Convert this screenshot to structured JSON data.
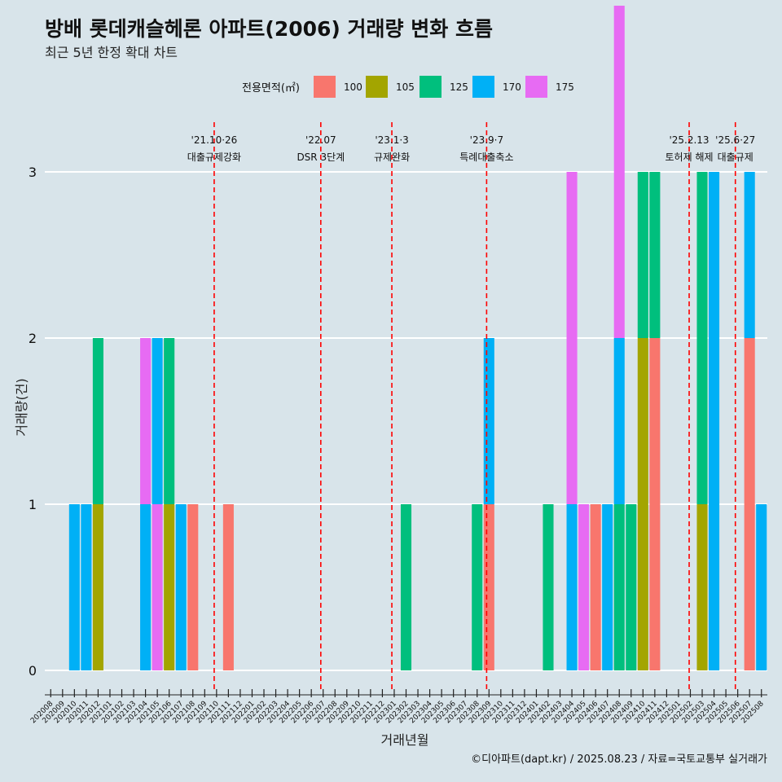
{
  "chart_data": {
    "type": "bar",
    "title": "방배 롯데캐슬헤론 아파트(2006) 거래량 변화 흐름",
    "subtitle": "최근 5년 한정 확대 차트",
    "xlabel": "거래년월",
    "ylabel": "거래량(건)",
    "caption": "©디아파트(dapt.kr) / 2025.08.23 / 자료=국토교통부 실거래가",
    "legend": {
      "title": "전용면적(㎡)",
      "placement": "top",
      "entries": [
        {
          "name": "100",
          "color": "#F8766D"
        },
        {
          "name": "105",
          "color": "#A3A500"
        },
        {
          "name": "125",
          "color": "#00BF7D"
        },
        {
          "name": "170",
          "color": "#00B0F6"
        },
        {
          "name": "175",
          "color": "#E76BF3"
        }
      ]
    },
    "ylim": [
      0,
      3
    ],
    "yticks": [
      0,
      1,
      2,
      3
    ],
    "grid": true,
    "categories": [
      "202008",
      "202009",
      "202010",
      "202011",
      "202012",
      "202101",
      "202102",
      "202103",
      "202104",
      "202105",
      "202106",
      "202107",
      "202108",
      "202109",
      "202110",
      "202111",
      "202112",
      "202201",
      "202202",
      "202203",
      "202204",
      "202205",
      "202206",
      "202207",
      "202208",
      "202209",
      "202210",
      "202211",
      "202212",
      "202301",
      "202302",
      "202303",
      "202304",
      "202305",
      "202306",
      "202307",
      "202308",
      "202309",
      "202310",
      "202311",
      "202312",
      "202401",
      "202402",
      "202403",
      "202404",
      "202405",
      "202406",
      "202407",
      "202408",
      "202409",
      "202410",
      "202411",
      "202412",
      "202501",
      "202502",
      "202503",
      "202504",
      "202505",
      "202506",
      "202507",
      "202508"
    ],
    "bars": [
      {
        "month": "202010",
        "groups": [
          {
            "size": "170",
            "count": 1
          }
        ]
      },
      {
        "month": "202011",
        "groups": [
          {
            "size": "170",
            "count": 1
          }
        ]
      },
      {
        "month": "202012",
        "groups": [
          {
            "size": "105",
            "count": 1
          },
          {
            "size": "125",
            "count": 1
          }
        ]
      },
      {
        "month": "202104",
        "groups": [
          {
            "size": "170",
            "count": 1
          },
          {
            "size": "175",
            "count": 1
          }
        ]
      },
      {
        "month": "202105",
        "groups": [
          {
            "size": "175",
            "count": 1
          },
          {
            "size": "170",
            "count": 1
          }
        ]
      },
      {
        "month": "202106",
        "groups": [
          {
            "size": "105",
            "count": 1
          },
          {
            "size": "125",
            "count": 1
          }
        ]
      },
      {
        "month": "202107",
        "groups": [
          {
            "size": "170",
            "count": 1
          }
        ]
      },
      {
        "month": "202108",
        "groups": [
          {
            "size": "100",
            "count": 1
          }
        ]
      },
      {
        "month": "202111",
        "groups": [
          {
            "size": "100",
            "count": 1
          }
        ]
      },
      {
        "month": "202302",
        "groups": [
          {
            "size": "125",
            "count": 1
          }
        ]
      },
      {
        "month": "202308",
        "groups": [
          {
            "size": "125",
            "count": 1
          }
        ]
      },
      {
        "month": "202309",
        "groups": [
          {
            "size": "100",
            "count": 1
          },
          {
            "size": "170",
            "count": 1
          }
        ]
      },
      {
        "month": "202402",
        "groups": [
          {
            "size": "125",
            "count": 1
          }
        ]
      },
      {
        "month": "202404",
        "groups": [
          {
            "size": "170",
            "count": 1
          },
          {
            "size": "175",
            "count": 2
          }
        ]
      },
      {
        "month": "202405",
        "groups": [
          {
            "size": "175",
            "count": 1
          }
        ]
      },
      {
        "month": "202406",
        "groups": [
          {
            "size": "100",
            "count": 1
          }
        ]
      },
      {
        "month": "202407",
        "groups": [
          {
            "size": "170",
            "count": 1
          }
        ]
      },
      {
        "month": "202408",
        "groups": [
          {
            "size": "125",
            "count": 1
          },
          {
            "size": "170",
            "count": 1
          },
          {
            "size": "175",
            "count": 2
          }
        ]
      },
      {
        "month": "202409",
        "groups": [
          {
            "size": "125",
            "count": 1
          }
        ]
      },
      {
        "month": "202410",
        "groups": [
          {
            "size": "105",
            "count": 2
          },
          {
            "size": "125",
            "count": 1
          }
        ]
      },
      {
        "month": "202411",
        "groups": [
          {
            "size": "100",
            "count": 2
          },
          {
            "size": "125",
            "count": 1
          }
        ]
      },
      {
        "month": "202503",
        "groups": [
          {
            "size": "105",
            "count": 1
          },
          {
            "size": "125",
            "count": 2
          }
        ]
      },
      {
        "month": "202504",
        "groups": [
          {
            "size": "170",
            "count": 3
          }
        ]
      },
      {
        "month": "202507",
        "groups": [
          {
            "size": "100",
            "count": 2
          },
          {
            "size": "170",
            "count": 1
          }
        ]
      },
      {
        "month": "202508",
        "groups": [
          {
            "size": "170",
            "count": 1
          }
        ]
      }
    ],
    "events": [
      {
        "date_label": "'21.10·26",
        "name": "대출규제강화",
        "at": 14.3
      },
      {
        "date_label": "'22.07",
        "name": "DSR 3단계",
        "at": 23.3
      },
      {
        "date_label": "'23.1·3",
        "name": "규제완화",
        "at": 29.3
      },
      {
        "date_label": "'23.9·7",
        "name": "특례대출축소",
        "at": 37.3
      },
      {
        "date_label": "'25.2.13",
        "name": "토허제 해제",
        "at": 54.4
      },
      {
        "date_label": "'25.6·27",
        "name": "대출규제",
        "at": 58.3
      }
    ],
    "event_line_color": "#ff0000"
  }
}
